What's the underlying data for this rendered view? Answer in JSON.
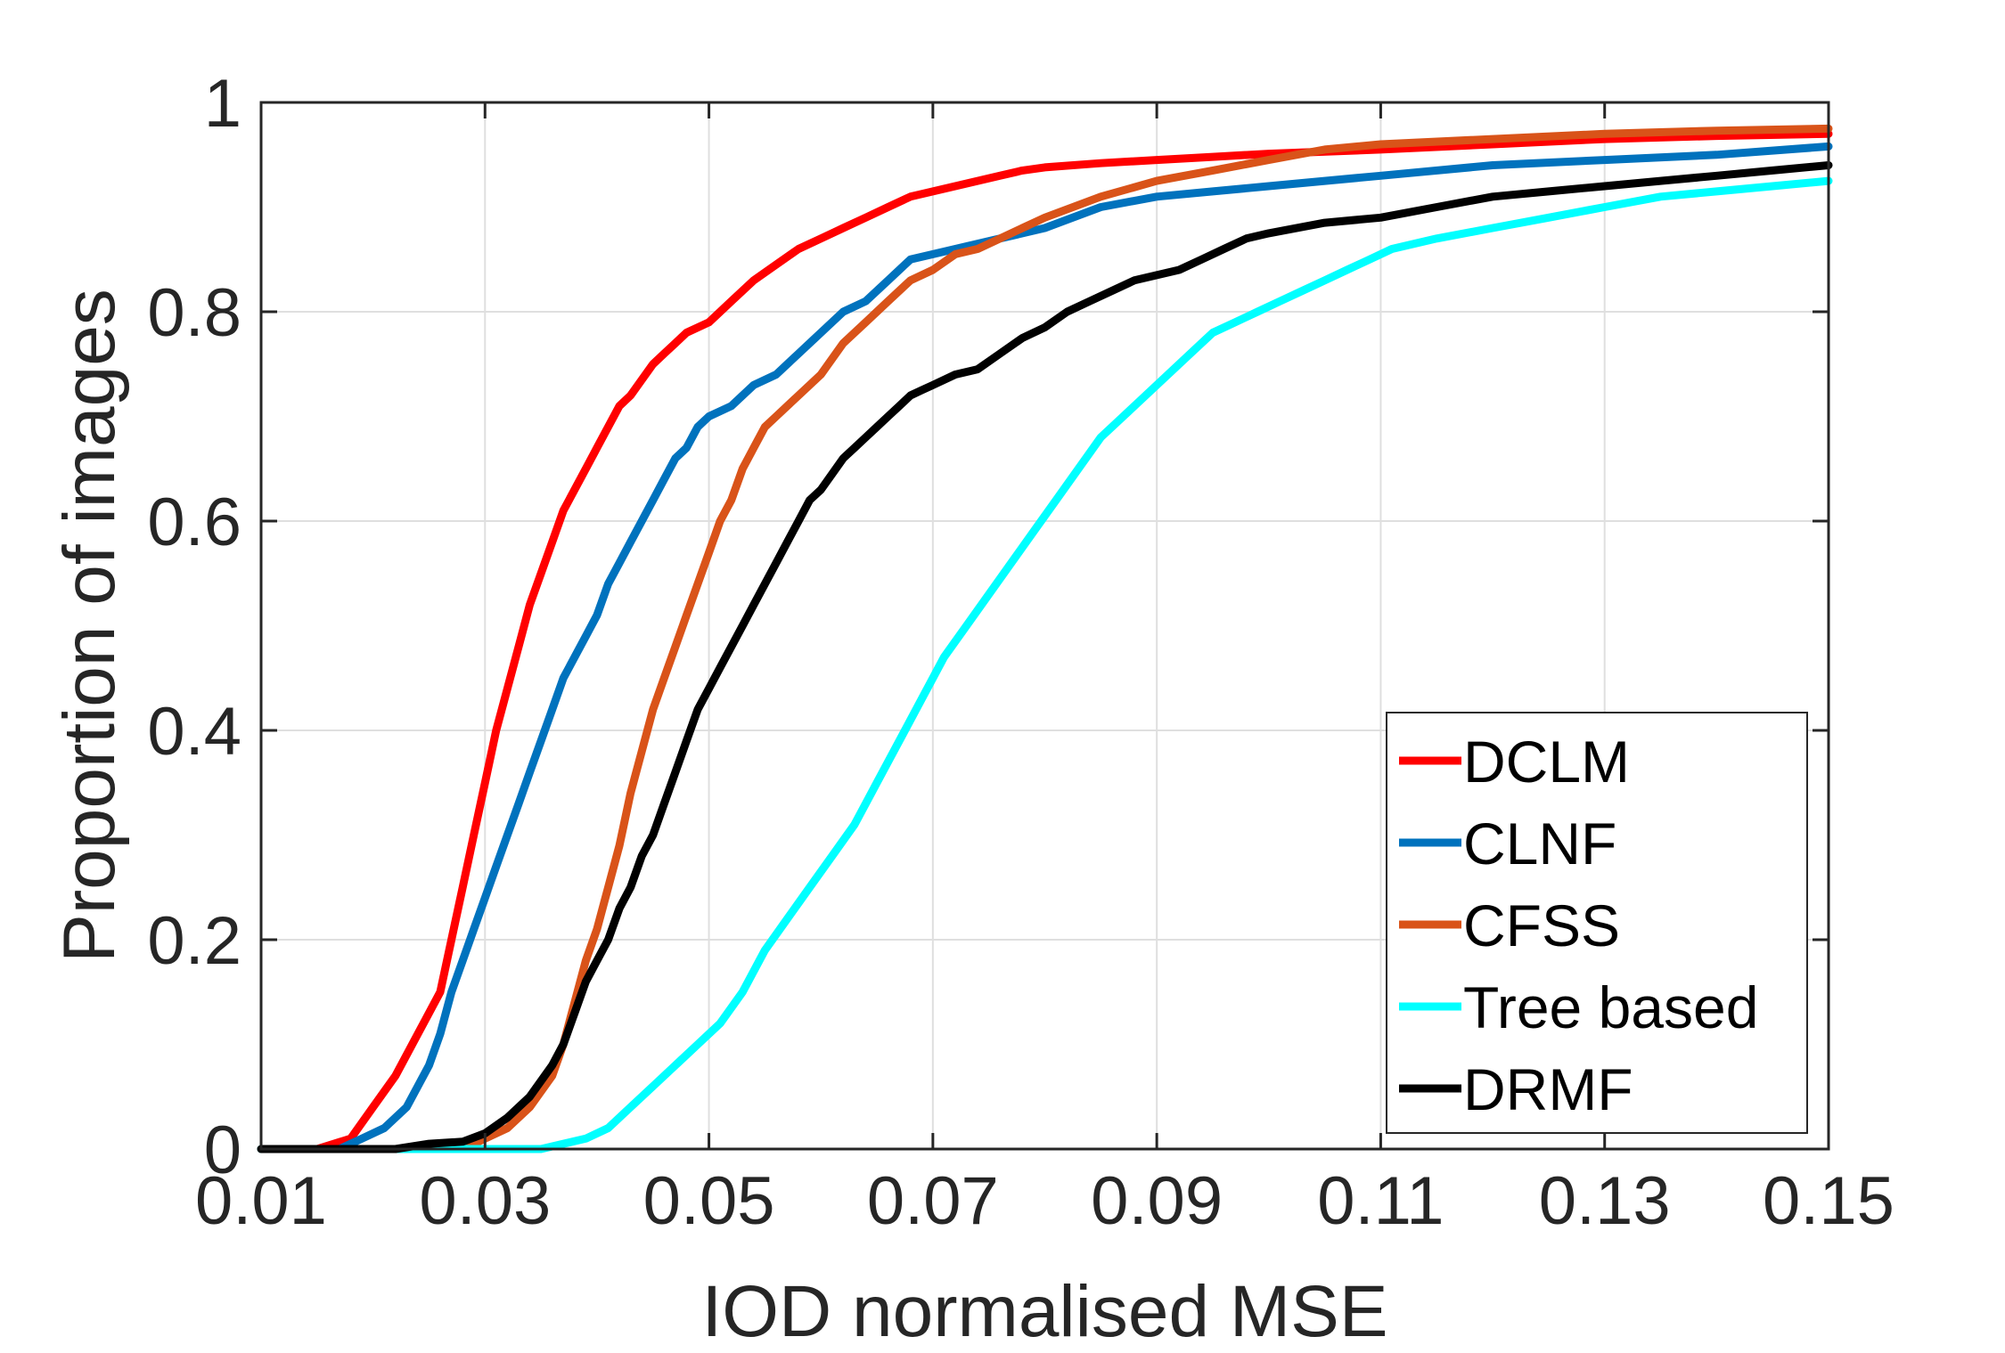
{
  "chart_data": {
    "type": "line",
    "title": "",
    "xlabel": "IOD normalised MSE",
    "ylabel": "Proportion of images",
    "xlim": [
      0.01,
      0.15
    ],
    "ylim": [
      0,
      1
    ],
    "xticks": [
      0.01,
      0.03,
      0.05,
      0.07,
      0.09,
      0.11,
      0.13,
      0.15
    ],
    "xtick_labels": [
      "0.01",
      "0.03",
      "0.05",
      "0.07",
      "0.09",
      "0.11",
      "0.13",
      "0.15"
    ],
    "yticks": [
      0,
      0.2,
      0.4,
      0.6,
      0.8,
      1
    ],
    "ytick_labels": [
      "0",
      "0.2",
      "0.4",
      "0.6",
      "0.8",
      "1"
    ],
    "grid": true,
    "legend_position": "bottom-right",
    "series": [
      {
        "name": "DCLM",
        "color": "#ff0000",
        "points": [
          [
            0.01,
            0
          ],
          [
            0.015,
            0
          ],
          [
            0.018,
            0.01
          ],
          [
            0.02,
            0.04
          ],
          [
            0.022,
            0.07
          ],
          [
            0.024,
            0.11
          ],
          [
            0.026,
            0.15
          ],
          [
            0.027,
            0.2
          ],
          [
            0.028,
            0.25
          ],
          [
            0.029,
            0.3
          ],
          [
            0.03,
            0.35
          ],
          [
            0.031,
            0.4
          ],
          [
            0.032,
            0.44
          ],
          [
            0.033,
            0.48
          ],
          [
            0.034,
            0.52
          ],
          [
            0.035,
            0.55
          ],
          [
            0.036,
            0.58
          ],
          [
            0.037,
            0.61
          ],
          [
            0.038,
            0.63
          ],
          [
            0.039,
            0.65
          ],
          [
            0.04,
            0.67
          ],
          [
            0.041,
            0.69
          ],
          [
            0.042,
            0.71
          ],
          [
            0.043,
            0.72
          ],
          [
            0.045,
            0.75
          ],
          [
            0.046,
            0.76
          ],
          [
            0.047,
            0.77
          ],
          [
            0.048,
            0.78
          ],
          [
            0.05,
            0.79
          ],
          [
            0.052,
            0.81
          ],
          [
            0.054,
            0.83
          ],
          [
            0.056,
            0.845
          ],
          [
            0.058,
            0.86
          ],
          [
            0.06,
            0.87
          ],
          [
            0.062,
            0.88
          ],
          [
            0.064,
            0.89
          ],
          [
            0.066,
            0.9
          ],
          [
            0.068,
            0.91
          ],
          [
            0.07,
            0.915
          ],
          [
            0.072,
            0.92
          ],
          [
            0.074,
            0.925
          ],
          [
            0.076,
            0.93
          ],
          [
            0.078,
            0.935
          ],
          [
            0.08,
            0.938
          ],
          [
            0.085,
            0.942
          ],
          [
            0.09,
            0.945
          ],
          [
            0.095,
            0.948
          ],
          [
            0.1,
            0.951
          ],
          [
            0.11,
            0.955
          ],
          [
            0.12,
            0.96
          ],
          [
            0.13,
            0.965
          ],
          [
            0.14,
            0.968
          ],
          [
            0.15,
            0.97
          ]
        ]
      },
      {
        "name": "CLNF",
        "color": "#0072bd",
        "points": [
          [
            0.01,
            0
          ],
          [
            0.017,
            0
          ],
          [
            0.019,
            0.01
          ],
          [
            0.021,
            0.02
          ],
          [
            0.023,
            0.04
          ],
          [
            0.025,
            0.08
          ],
          [
            0.026,
            0.11
          ],
          [
            0.027,
            0.15
          ],
          [
            0.028,
            0.18
          ],
          [
            0.029,
            0.21
          ],
          [
            0.03,
            0.24
          ],
          [
            0.031,
            0.27
          ],
          [
            0.032,
            0.3
          ],
          [
            0.033,
            0.33
          ],
          [
            0.034,
            0.36
          ],
          [
            0.035,
            0.39
          ],
          [
            0.036,
            0.42
          ],
          [
            0.037,
            0.45
          ],
          [
            0.038,
            0.47
          ],
          [
            0.039,
            0.49
          ],
          [
            0.04,
            0.51
          ],
          [
            0.041,
            0.54
          ],
          [
            0.042,
            0.56
          ],
          [
            0.043,
            0.58
          ],
          [
            0.044,
            0.6
          ],
          [
            0.045,
            0.62
          ],
          [
            0.046,
            0.64
          ],
          [
            0.047,
            0.66
          ],
          [
            0.048,
            0.67
          ],
          [
            0.049,
            0.69
          ],
          [
            0.05,
            0.7
          ],
          [
            0.052,
            0.71
          ],
          [
            0.054,
            0.73
          ],
          [
            0.056,
            0.74
          ],
          [
            0.058,
            0.76
          ],
          [
            0.06,
            0.78
          ],
          [
            0.062,
            0.8
          ],
          [
            0.064,
            0.81
          ],
          [
            0.066,
            0.83
          ],
          [
            0.068,
            0.85
          ],
          [
            0.07,
            0.855
          ],
          [
            0.072,
            0.86
          ],
          [
            0.074,
            0.865
          ],
          [
            0.076,
            0.87
          ],
          [
            0.078,
            0.875
          ],
          [
            0.08,
            0.88
          ],
          [
            0.085,
            0.9
          ],
          [
            0.09,
            0.91
          ],
          [
            0.095,
            0.915
          ],
          [
            0.1,
            0.92
          ],
          [
            0.11,
            0.93
          ],
          [
            0.12,
            0.94
          ],
          [
            0.13,
            0.945
          ],
          [
            0.14,
            0.95
          ],
          [
            0.15,
            0.958
          ]
        ]
      },
      {
        "name": "CFSS",
        "color": "#d95319",
        "points": [
          [
            0.01,
            0
          ],
          [
            0.028,
            0
          ],
          [
            0.03,
            0.01
          ],
          [
            0.032,
            0.02
          ],
          [
            0.034,
            0.04
          ],
          [
            0.036,
            0.07
          ],
          [
            0.037,
            0.1
          ],
          [
            0.038,
            0.14
          ],
          [
            0.039,
            0.18
          ],
          [
            0.04,
            0.21
          ],
          [
            0.041,
            0.25
          ],
          [
            0.042,
            0.29
          ],
          [
            0.043,
            0.34
          ],
          [
            0.044,
            0.38
          ],
          [
            0.045,
            0.42
          ],
          [
            0.046,
            0.45
          ],
          [
            0.047,
            0.48
          ],
          [
            0.048,
            0.51
          ],
          [
            0.049,
            0.54
          ],
          [
            0.05,
            0.57
          ],
          [
            0.051,
            0.6
          ],
          [
            0.052,
            0.62
          ],
          [
            0.053,
            0.65
          ],
          [
            0.054,
            0.67
          ],
          [
            0.055,
            0.69
          ],
          [
            0.056,
            0.7
          ],
          [
            0.058,
            0.72
          ],
          [
            0.06,
            0.74
          ],
          [
            0.062,
            0.77
          ],
          [
            0.064,
            0.79
          ],
          [
            0.066,
            0.81
          ],
          [
            0.068,
            0.83
          ],
          [
            0.07,
            0.84
          ],
          [
            0.072,
            0.855
          ],
          [
            0.074,
            0.86
          ],
          [
            0.076,
            0.87
          ],
          [
            0.078,
            0.88
          ],
          [
            0.08,
            0.89
          ],
          [
            0.085,
            0.91
          ],
          [
            0.09,
            0.925
          ],
          [
            0.095,
            0.935
          ],
          [
            0.1,
            0.945
          ],
          [
            0.105,
            0.955
          ],
          [
            0.11,
            0.96
          ],
          [
            0.12,
            0.965
          ],
          [
            0.13,
            0.97
          ],
          [
            0.14,
            0.973
          ],
          [
            0.15,
            0.975
          ]
        ]
      },
      {
        "name": "Tree based",
        "color": "#00ffff",
        "points": [
          [
            0.01,
            0
          ],
          [
            0.035,
            0
          ],
          [
            0.037,
            0.005
          ],
          [
            0.039,
            0.01
          ],
          [
            0.041,
            0.02
          ],
          [
            0.043,
            0.04
          ],
          [
            0.045,
            0.06
          ],
          [
            0.047,
            0.08
          ],
          [
            0.049,
            0.1
          ],
          [
            0.051,
            0.12
          ],
          [
            0.053,
            0.15
          ],
          [
            0.055,
            0.19
          ],
          [
            0.057,
            0.22
          ],
          [
            0.059,
            0.25
          ],
          [
            0.061,
            0.28
          ],
          [
            0.063,
            0.31
          ],
          [
            0.065,
            0.35
          ],
          [
            0.067,
            0.39
          ],
          [
            0.069,
            0.43
          ],
          [
            0.071,
            0.47
          ],
          [
            0.073,
            0.5
          ],
          [
            0.075,
            0.53
          ],
          [
            0.077,
            0.56
          ],
          [
            0.079,
            0.59
          ],
          [
            0.081,
            0.62
          ],
          [
            0.083,
            0.65
          ],
          [
            0.085,
            0.68
          ],
          [
            0.087,
            0.7
          ],
          [
            0.089,
            0.72
          ],
          [
            0.091,
            0.74
          ],
          [
            0.093,
            0.76
          ],
          [
            0.095,
            0.78
          ],
          [
            0.097,
            0.79
          ],
          [
            0.099,
            0.8
          ],
          [
            0.101,
            0.81
          ],
          [
            0.103,
            0.82
          ],
          [
            0.105,
            0.83
          ],
          [
            0.107,
            0.84
          ],
          [
            0.109,
            0.85
          ],
          [
            0.111,
            0.86
          ],
          [
            0.113,
            0.865
          ],
          [
            0.115,
            0.87
          ],
          [
            0.12,
            0.88
          ],
          [
            0.125,
            0.89
          ],
          [
            0.13,
            0.9
          ],
          [
            0.135,
            0.91
          ],
          [
            0.14,
            0.915
          ],
          [
            0.145,
            0.92
          ],
          [
            0.15,
            0.925
          ]
        ]
      },
      {
        "name": "DRMF",
        "color": "#000000",
        "points": [
          [
            0.01,
            0
          ],
          [
            0.022,
            0
          ],
          [
            0.025,
            0.005
          ],
          [
            0.028,
            0.007
          ],
          [
            0.03,
            0.015
          ],
          [
            0.032,
            0.03
          ],
          [
            0.034,
            0.05
          ],
          [
            0.036,
            0.08
          ],
          [
            0.037,
            0.1
          ],
          [
            0.038,
            0.13
          ],
          [
            0.039,
            0.16
          ],
          [
            0.04,
            0.18
          ],
          [
            0.041,
            0.2
          ],
          [
            0.042,
            0.23
          ],
          [
            0.043,
            0.25
          ],
          [
            0.044,
            0.28
          ],
          [
            0.045,
            0.3
          ],
          [
            0.046,
            0.33
          ],
          [
            0.047,
            0.36
          ],
          [
            0.048,
            0.39
          ],
          [
            0.049,
            0.42
          ],
          [
            0.05,
            0.44
          ],
          [
            0.051,
            0.46
          ],
          [
            0.052,
            0.48
          ],
          [
            0.053,
            0.5
          ],
          [
            0.054,
            0.52
          ],
          [
            0.055,
            0.54
          ],
          [
            0.056,
            0.56
          ],
          [
            0.057,
            0.58
          ],
          [
            0.058,
            0.6
          ],
          [
            0.059,
            0.62
          ],
          [
            0.06,
            0.63
          ],
          [
            0.061,
            0.645
          ],
          [
            0.062,
            0.66
          ],
          [
            0.063,
            0.67
          ],
          [
            0.064,
            0.68
          ],
          [
            0.065,
            0.69
          ],
          [
            0.066,
            0.7
          ],
          [
            0.067,
            0.71
          ],
          [
            0.068,
            0.72
          ],
          [
            0.069,
            0.725
          ],
          [
            0.07,
            0.73
          ],
          [
            0.072,
            0.74
          ],
          [
            0.074,
            0.745
          ],
          [
            0.076,
            0.76
          ],
          [
            0.078,
            0.775
          ],
          [
            0.08,
            0.785
          ],
          [
            0.082,
            0.8
          ],
          [
            0.084,
            0.81
          ],
          [
            0.086,
            0.82
          ],
          [
            0.088,
            0.83
          ],
          [
            0.09,
            0.835
          ],
          [
            0.092,
            0.84
          ],
          [
            0.094,
            0.85
          ],
          [
            0.096,
            0.86
          ],
          [
            0.098,
            0.87
          ],
          [
            0.1,
            0.875
          ],
          [
            0.105,
            0.885
          ],
          [
            0.11,
            0.89
          ],
          [
            0.115,
            0.9
          ],
          [
            0.12,
            0.91
          ],
          [
            0.125,
            0.915
          ],
          [
            0.13,
            0.92
          ],
          [
            0.135,
            0.925
          ],
          [
            0.14,
            0.93
          ],
          [
            0.145,
            0.935
          ],
          [
            0.15,
            0.94
          ]
        ]
      }
    ]
  }
}
